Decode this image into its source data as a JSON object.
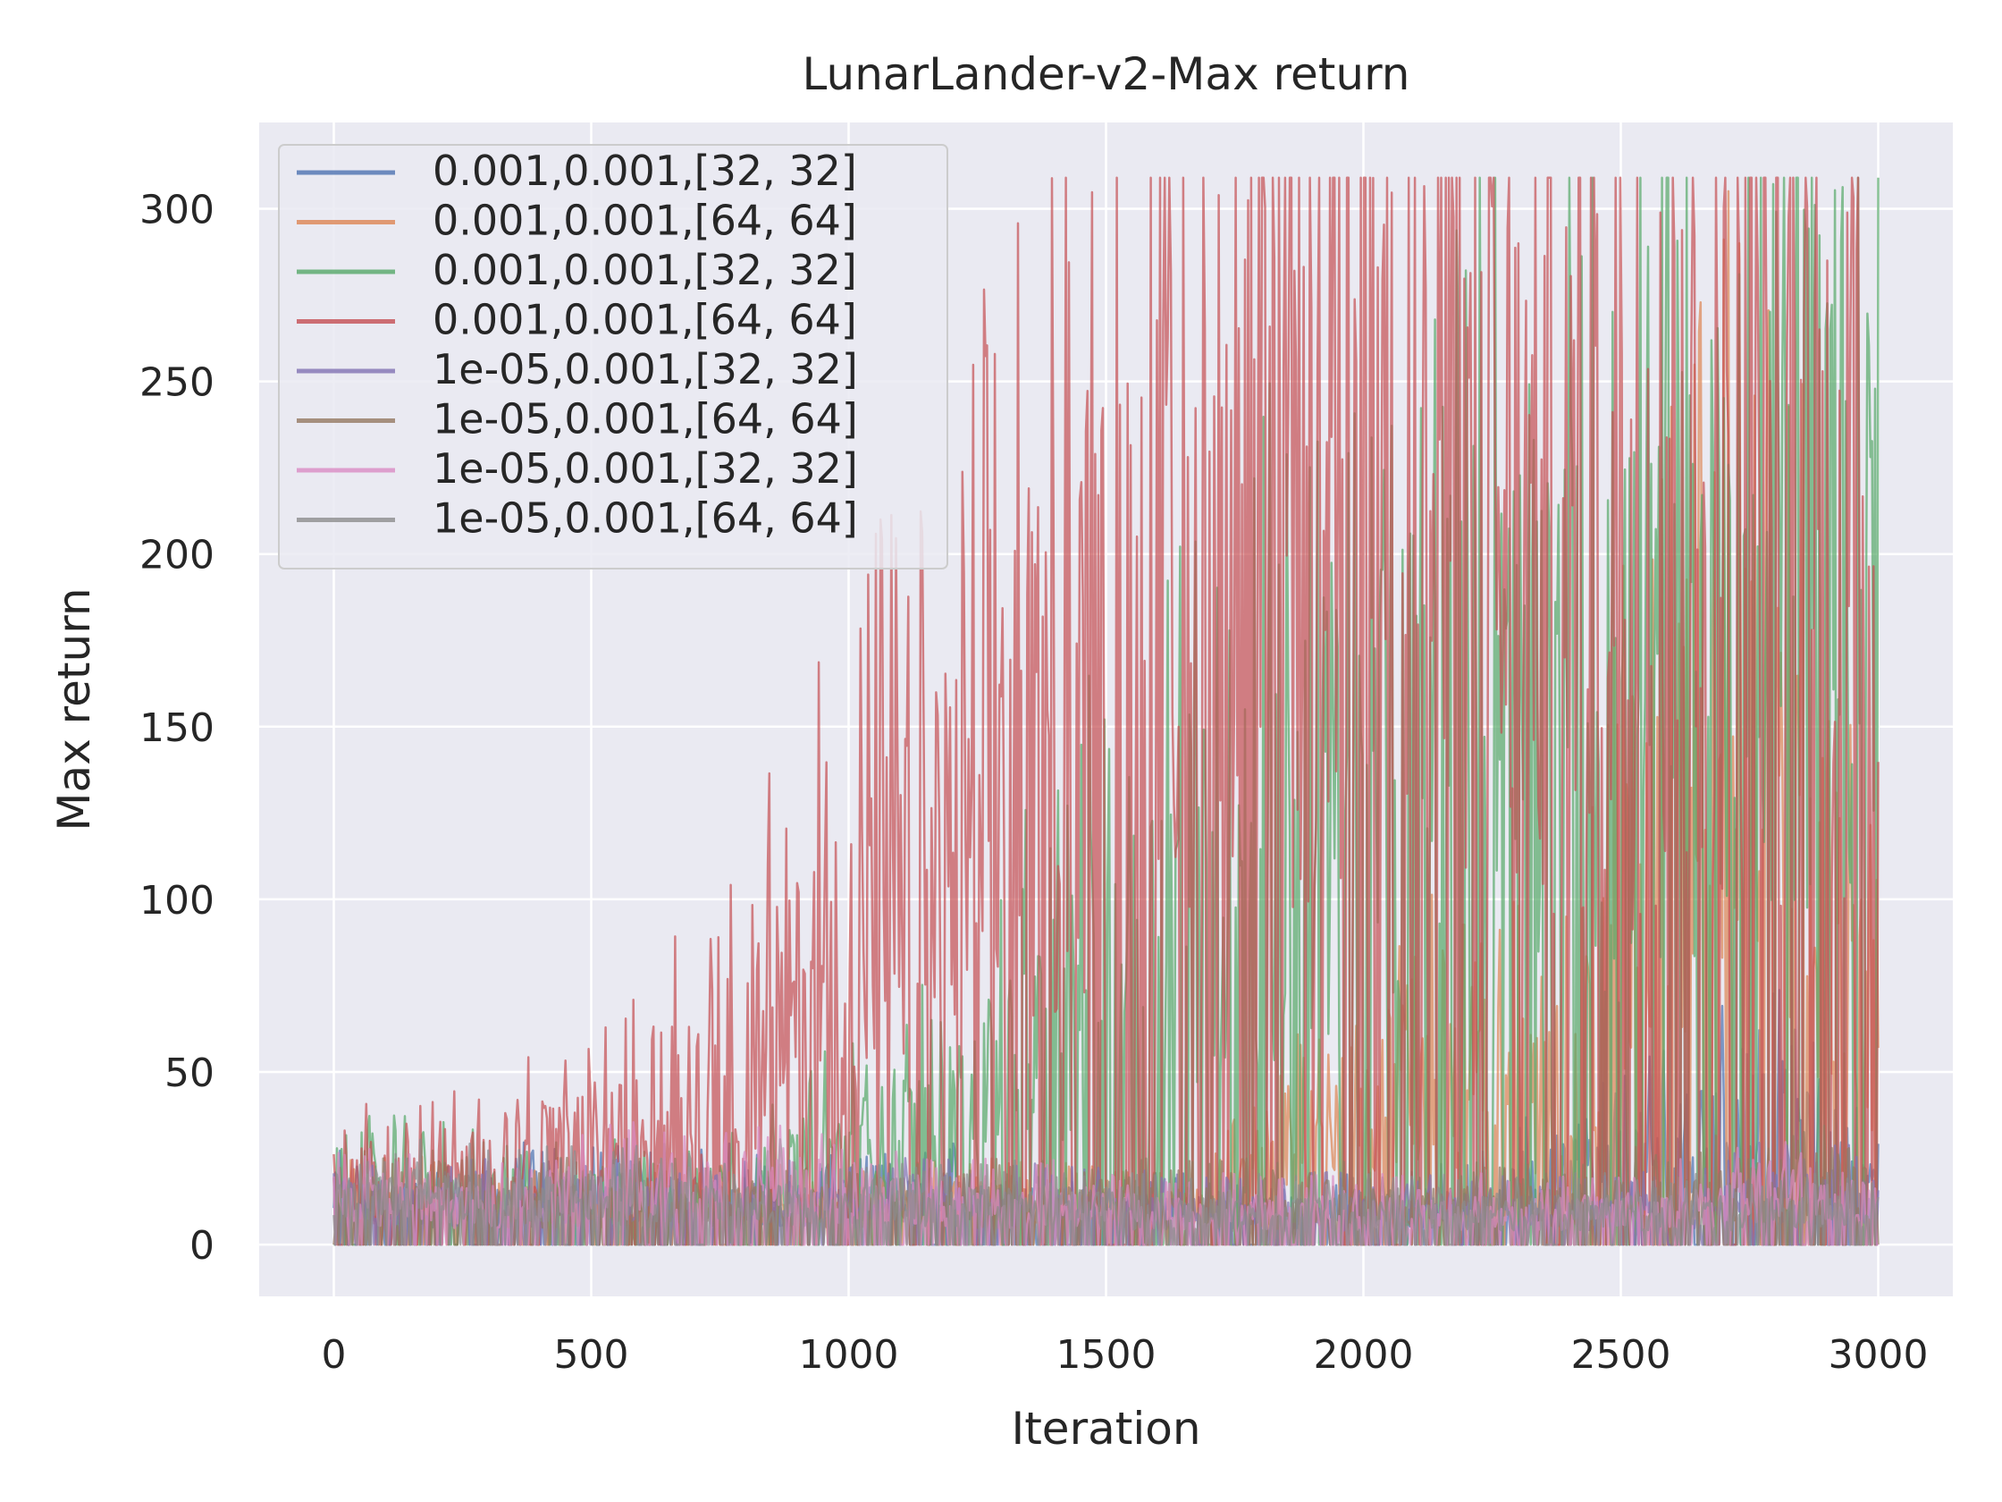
{
  "chart_data": {
    "type": "line",
    "title": "LunarLander-v2-Max return",
    "xlabel": "Iteration",
    "ylabel": "Max return",
    "xlim": [
      -145,
      3145
    ],
    "ylim": [
      -15,
      325
    ],
    "x_ticks": [
      0,
      500,
      1000,
      1500,
      2000,
      2500,
      3000
    ],
    "y_ticks": [
      0,
      50,
      100,
      150,
      200,
      250,
      300
    ],
    "grid": true,
    "legend_position": "top-left",
    "background": "#eaeaf2",
    "series": [
      {
        "name": "0.001,0.001,[32, 32]",
        "color": "#4c72b0",
        "segments": [
          [
            0,
            15
          ],
          [
            200,
            12
          ],
          [
            300,
            14
          ],
          [
            600,
            15
          ],
          [
            800,
            14
          ],
          [
            1000,
            12
          ],
          [
            1200,
            15
          ],
          [
            1400,
            12
          ],
          [
            1600,
            10
          ],
          [
            1800,
            10
          ],
          [
            2000,
            10
          ],
          [
            2200,
            12
          ],
          [
            2400,
            22
          ],
          [
            2600,
            30
          ],
          [
            2800,
            40
          ],
          [
            3000,
            15
          ]
        ]
      },
      {
        "name": "0.001,0.001,[64, 64]",
        "color": "#dd8452",
        "segments": [
          [
            0,
            15
          ],
          [
            200,
            12
          ],
          [
            300,
            12
          ],
          [
            600,
            12
          ],
          [
            800,
            12
          ],
          [
            1000,
            10
          ],
          [
            1200,
            12
          ],
          [
            1400,
            12
          ],
          [
            1600,
            10
          ],
          [
            1800,
            20
          ],
          [
            2000,
            45
          ],
          [
            2200,
            55
          ],
          [
            2400,
            45
          ],
          [
            2600,
            140
          ],
          [
            2800,
            150
          ],
          [
            3000,
            60
          ]
        ]
      },
      {
        "name": "0.001,0.001,[32, 32]",
        "color": "#55a868",
        "segments": [
          [
            0,
            20
          ],
          [
            200,
            18
          ],
          [
            300,
            15
          ],
          [
            600,
            15
          ],
          [
            800,
            18
          ],
          [
            1000,
            30
          ],
          [
            1200,
            40
          ],
          [
            1400,
            70
          ],
          [
            1600,
            100
          ],
          [
            1800,
            120
          ],
          [
            2000,
            140
          ],
          [
            2200,
            170
          ],
          [
            2400,
            165
          ],
          [
            2600,
            170
          ],
          [
            2800,
            230
          ],
          [
            3000,
            230
          ]
        ]
      },
      {
        "name": "0.001,0.001,[64, 64]",
        "color": "#c44e52",
        "segments": [
          [
            0,
            20
          ],
          [
            200,
            20
          ],
          [
            300,
            25
          ],
          [
            600,
            35
          ],
          [
            800,
            60
          ],
          [
            1000,
            95
          ],
          [
            1200,
            120
          ],
          [
            1400,
            160
          ],
          [
            1600,
            195
          ],
          [
            1800,
            225
          ],
          [
            2000,
            240
          ],
          [
            2200,
            230
          ],
          [
            2400,
            225
          ],
          [
            2600,
            230
          ],
          [
            2800,
            240
          ],
          [
            3000,
            220
          ]
        ]
      },
      {
        "name": "1e-05,0.001,[32, 32]",
        "color": "#8172b3",
        "segments": [
          [
            0,
            15
          ],
          [
            200,
            12
          ],
          [
            300,
            12
          ],
          [
            600,
            12
          ],
          [
            800,
            12
          ],
          [
            1000,
            12
          ],
          [
            1200,
            12
          ],
          [
            1400,
            12
          ],
          [
            1600,
            10
          ],
          [
            1800,
            10
          ],
          [
            2000,
            10
          ],
          [
            2200,
            10
          ],
          [
            2400,
            10
          ],
          [
            2600,
            10
          ],
          [
            2800,
            15
          ],
          [
            3000,
            15
          ]
        ]
      },
      {
        "name": "1e-05,0.001,[64, 64]",
        "color": "#937860",
        "segments": [
          [
            0,
            12
          ],
          [
            200,
            12
          ],
          [
            300,
            12
          ],
          [
            600,
            12
          ],
          [
            800,
            12
          ],
          [
            1000,
            12
          ],
          [
            1200,
            12
          ],
          [
            1400,
            12
          ],
          [
            1600,
            12
          ],
          [
            1800,
            12
          ],
          [
            2000,
            12
          ],
          [
            2200,
            12
          ],
          [
            2400,
            12
          ],
          [
            2600,
            15
          ],
          [
            2800,
            18
          ],
          [
            3000,
            18
          ]
        ]
      },
      {
        "name": "1e-05,0.001,[32, 32]",
        "color": "#da8bc3",
        "segments": [
          [
            0,
            15
          ],
          [
            200,
            12
          ],
          [
            300,
            12
          ],
          [
            600,
            18
          ],
          [
            800,
            20
          ],
          [
            1000,
            14
          ],
          [
            1200,
            12
          ],
          [
            1400,
            12
          ],
          [
            1600,
            10
          ],
          [
            1800,
            10
          ],
          [
            2000,
            10
          ],
          [
            2200,
            10
          ],
          [
            2400,
            10
          ],
          [
            2600,
            12
          ],
          [
            2800,
            15
          ],
          [
            3000,
            12
          ]
        ]
      },
      {
        "name": "1e-05,0.001,[64, 64]",
        "color": "#8c8c8c",
        "segments": [
          [
            0,
            15
          ],
          [
            200,
            15
          ],
          [
            300,
            14
          ],
          [
            600,
            14
          ],
          [
            800,
            12
          ],
          [
            1000,
            12
          ],
          [
            1200,
            12
          ],
          [
            1400,
            12
          ],
          [
            1600,
            10
          ],
          [
            1800,
            10
          ],
          [
            2000,
            10
          ],
          [
            2200,
            10
          ],
          [
            2400,
            10
          ],
          [
            2600,
            10
          ],
          [
            2800,
            10
          ],
          [
            3000,
            10
          ]
        ]
      }
    ]
  }
}
